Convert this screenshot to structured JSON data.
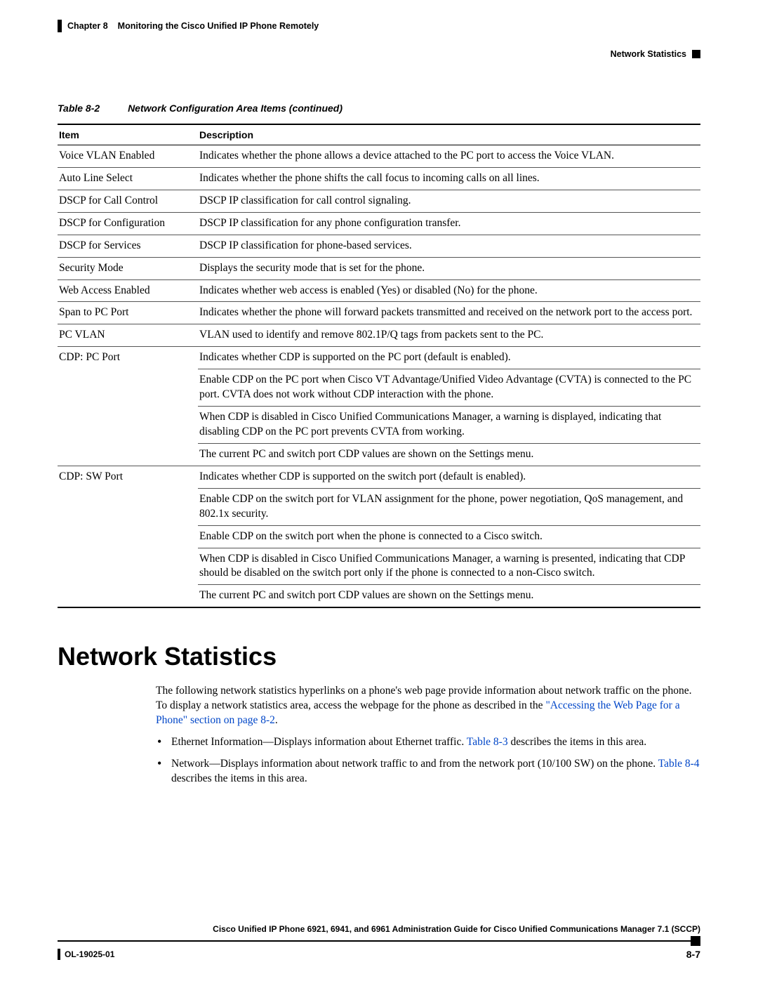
{
  "header": {
    "chapter_label": "Chapter 8",
    "chapter_title": "Monitoring the Cisco Unified IP Phone Remotely",
    "section_label": "Network Statistics"
  },
  "table_caption": {
    "number": "Table 8-2",
    "title": "Network Configuration Area Items (continued)"
  },
  "table": {
    "columns": [
      "Item",
      "Description"
    ],
    "rows": [
      {
        "item": "Voice VLAN Enabled",
        "desc": "Indicates whether the phone allows a device attached to the PC port to access the Voice VLAN.",
        "cont": false
      },
      {
        "item": "Auto Line Select",
        "desc": "Indicates whether the phone shifts the call focus to incoming calls on all lines.",
        "cont": false
      },
      {
        "item": "DSCP for Call Control",
        "desc": "DSCP IP classification for call control signaling.",
        "cont": false
      },
      {
        "item": "DSCP for Configuration",
        "desc": "DSCP IP classification for any phone configuration transfer.",
        "cont": false
      },
      {
        "item": "DSCP for Services",
        "desc": "DSCP IP classification for phone-based services.",
        "cont": false
      },
      {
        "item": "Security Mode",
        "desc": "Displays the security mode that is set for the phone.",
        "cont": false
      },
      {
        "item": "Web Access Enabled",
        "desc": "Indicates whether web access is enabled (Yes) or disabled (No) for the phone.",
        "cont": false
      },
      {
        "item": "Span to PC Port",
        "desc": "Indicates whether the phone will forward packets transmitted and received on the network port to the access port.",
        "cont": false
      },
      {
        "item": "PC VLAN",
        "desc": "VLAN used to identify and remove 802.1P/Q tags from packets sent to the PC.",
        "cont": false
      },
      {
        "item": "CDP: PC Port",
        "desc": "Indicates whether CDP is supported on the PC port (default is enabled).",
        "cont": true
      },
      {
        "item": "",
        "desc": "Enable CDP on the PC port when Cisco VT Advantage/Unified Video Advantage (CVTA) is connected to the PC port. CVTA does not work without CDP interaction with the phone.",
        "cont": true
      },
      {
        "item": "",
        "desc": "When CDP is disabled in Cisco Unified Communications Manager, a warning is displayed, indicating that disabling CDP on the PC port prevents CVTA from working.",
        "cont": true
      },
      {
        "item": "",
        "desc": "The current PC and switch port CDP values are shown on the Settings menu.",
        "cont": false
      },
      {
        "item": "CDP: SW Port",
        "desc": "Indicates whether CDP is supported on the switch port (default is enabled).",
        "cont": true
      },
      {
        "item": "",
        "desc": "Enable CDP on the switch port for VLAN assignment for the phone, power negotiation, QoS management, and 802.1x security.",
        "cont": true
      },
      {
        "item": "",
        "desc": "Enable CDP on the switch port when the phone is connected to a Cisco switch.",
        "cont": true
      },
      {
        "item": "",
        "desc": "When CDP is disabled in Cisco Unified Communications Manager, a warning is presented, indicating that CDP should be disabled on the switch port only if the phone is connected to a non-Cisco switch.",
        "cont": true
      },
      {
        "item": "",
        "desc": "The current PC and switch port CDP values are shown on the Settings menu.",
        "cont": false,
        "last": true
      }
    ]
  },
  "section": {
    "heading": "Network Statistics",
    "para_pre": "The following network statistics hyperlinks on a phone's web page provide information about network traffic on the phone. To display a network statistics area, access the webpage for the phone as described in the ",
    "para_link": "\"Accessing the Web Page for a Phone\" section on page 8-2",
    "para_post": ".",
    "bullets": [
      {
        "pre": "Ethernet Information—Displays information about Ethernet traffic. ",
        "link": "Table 8-3",
        "post": " describes the items in this area."
      },
      {
        "pre": "Network—Displays information about network traffic to and from the network port (10/100 SW) on the phone. ",
        "link": "Table 8-4",
        "post": " describes the items in this area."
      }
    ]
  },
  "footer": {
    "guide_title": "Cisco Unified IP Phone 6921, 6941, and 6961 Administration Guide for Cisco Unified Communications Manager 7.1 (SCCP)",
    "doc_id": "OL-19025-01",
    "page": "8-7"
  }
}
